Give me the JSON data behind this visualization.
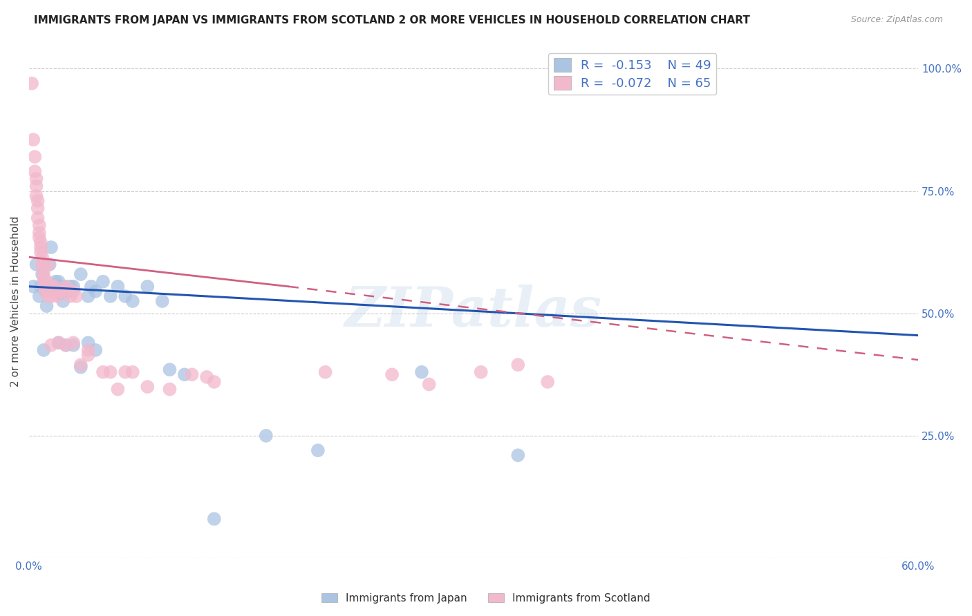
{
  "title": "IMMIGRANTS FROM JAPAN VS IMMIGRANTS FROM SCOTLAND 2 OR MORE VEHICLES IN HOUSEHOLD CORRELATION CHART",
  "source": "Source: ZipAtlas.com",
  "ylabel": "2 or more Vehicles in Household",
  "x_min": 0.0,
  "x_max": 0.6,
  "y_min": 0.0,
  "y_max": 1.05,
  "legend_r_japan": "-0.153",
  "legend_n_japan": "49",
  "legend_r_scotland": "-0.072",
  "legend_n_scotland": "65",
  "japan_color": "#aac4e2",
  "scotland_color": "#f2b8cc",
  "japan_line_color": "#2255b0",
  "scotland_line_color": "#d06080",
  "watermark": "ZIPatlas",
  "japan_line_x0": 0.0,
  "japan_line_y0": 0.555,
  "japan_line_x1": 0.6,
  "japan_line_y1": 0.455,
  "scotland_line_solid_x0": 0.0,
  "scotland_line_solid_y0": 0.615,
  "scotland_line_solid_x1": 0.175,
  "scotland_line_solid_y1": 0.555,
  "scotland_line_dash_x0": 0.175,
  "scotland_line_dash_y0": 0.555,
  "scotland_line_dash_x1": 0.6,
  "scotland_line_dash_y1": 0.405,
  "japan_points": [
    [
      0.003,
      0.555
    ],
    [
      0.005,
      0.6
    ],
    [
      0.007,
      0.535
    ],
    [
      0.008,
      0.555
    ],
    [
      0.009,
      0.58
    ],
    [
      0.01,
      0.555
    ],
    [
      0.011,
      0.545
    ],
    [
      0.012,
      0.515
    ],
    [
      0.013,
      0.555
    ],
    [
      0.014,
      0.6
    ],
    [
      0.015,
      0.635
    ],
    [
      0.016,
      0.555
    ],
    [
      0.017,
      0.555
    ],
    [
      0.018,
      0.565
    ],
    [
      0.019,
      0.555
    ],
    [
      0.02,
      0.565
    ],
    [
      0.021,
      0.54
    ],
    [
      0.022,
      0.555
    ],
    [
      0.023,
      0.525
    ],
    [
      0.024,
      0.555
    ],
    [
      0.025,
      0.545
    ],
    [
      0.026,
      0.545
    ],
    [
      0.028,
      0.555
    ],
    [
      0.03,
      0.555
    ],
    [
      0.035,
      0.58
    ],
    [
      0.04,
      0.535
    ],
    [
      0.042,
      0.555
    ],
    [
      0.045,
      0.545
    ],
    [
      0.05,
      0.565
    ],
    [
      0.055,
      0.535
    ],
    [
      0.06,
      0.555
    ],
    [
      0.065,
      0.535
    ],
    [
      0.07,
      0.525
    ],
    [
      0.08,
      0.555
    ],
    [
      0.09,
      0.525
    ],
    [
      0.01,
      0.425
    ],
    [
      0.02,
      0.44
    ],
    [
      0.025,
      0.435
    ],
    [
      0.03,
      0.435
    ],
    [
      0.035,
      0.39
    ],
    [
      0.04,
      0.44
    ],
    [
      0.045,
      0.425
    ],
    [
      0.095,
      0.385
    ],
    [
      0.105,
      0.375
    ],
    [
      0.125,
      0.08
    ],
    [
      0.16,
      0.25
    ],
    [
      0.195,
      0.22
    ],
    [
      0.265,
      0.38
    ],
    [
      0.33,
      0.21
    ]
  ],
  "scotland_points": [
    [
      0.002,
      0.97
    ],
    [
      0.003,
      0.855
    ],
    [
      0.004,
      0.82
    ],
    [
      0.004,
      0.79
    ],
    [
      0.005,
      0.775
    ],
    [
      0.005,
      0.76
    ],
    [
      0.005,
      0.74
    ],
    [
      0.006,
      0.73
    ],
    [
      0.006,
      0.715
    ],
    [
      0.006,
      0.695
    ],
    [
      0.007,
      0.68
    ],
    [
      0.007,
      0.665
    ],
    [
      0.007,
      0.655
    ],
    [
      0.008,
      0.645
    ],
    [
      0.008,
      0.635
    ],
    [
      0.008,
      0.625
    ],
    [
      0.009,
      0.615
    ],
    [
      0.009,
      0.605
    ],
    [
      0.009,
      0.595
    ],
    [
      0.01,
      0.585
    ],
    [
      0.01,
      0.575
    ],
    [
      0.01,
      0.565
    ],
    [
      0.011,
      0.555
    ],
    [
      0.011,
      0.545
    ],
    [
      0.012,
      0.555
    ],
    [
      0.012,
      0.565
    ],
    [
      0.013,
      0.535
    ],
    [
      0.013,
      0.6
    ],
    [
      0.014,
      0.555
    ],
    [
      0.014,
      0.545
    ],
    [
      0.015,
      0.555
    ],
    [
      0.015,
      0.535
    ],
    [
      0.016,
      0.545
    ],
    [
      0.017,
      0.555
    ],
    [
      0.018,
      0.545
    ],
    [
      0.019,
      0.535
    ],
    [
      0.02,
      0.545
    ],
    [
      0.022,
      0.545
    ],
    [
      0.024,
      0.545
    ],
    [
      0.025,
      0.555
    ],
    [
      0.028,
      0.535
    ],
    [
      0.03,
      0.545
    ],
    [
      0.032,
      0.535
    ],
    [
      0.015,
      0.435
    ],
    [
      0.02,
      0.44
    ],
    [
      0.025,
      0.435
    ],
    [
      0.03,
      0.44
    ],
    [
      0.035,
      0.395
    ],
    [
      0.04,
      0.425
    ],
    [
      0.04,
      0.415
    ],
    [
      0.05,
      0.38
    ],
    [
      0.055,
      0.38
    ],
    [
      0.06,
      0.345
    ],
    [
      0.065,
      0.38
    ],
    [
      0.07,
      0.38
    ],
    [
      0.08,
      0.35
    ],
    [
      0.095,
      0.345
    ],
    [
      0.11,
      0.375
    ],
    [
      0.12,
      0.37
    ],
    [
      0.125,
      0.36
    ],
    [
      0.2,
      0.38
    ],
    [
      0.245,
      0.375
    ],
    [
      0.27,
      0.355
    ],
    [
      0.305,
      0.38
    ],
    [
      0.33,
      0.395
    ],
    [
      0.35,
      0.36
    ]
  ]
}
